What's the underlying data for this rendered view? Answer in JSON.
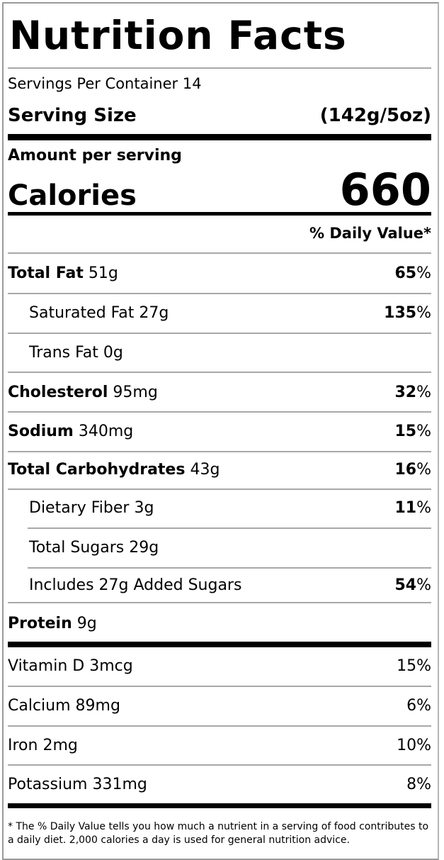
{
  "title": "Nutrition Facts",
  "servings_per_container": "Servings Per Container 14",
  "serving_size": {
    "label": "Serving Size",
    "value": "(142g/5oz)"
  },
  "amount_per_serving": "Amount per serving",
  "calories": {
    "label": "Calories",
    "value": "660"
  },
  "daily_value_header": "% Daily Value*",
  "nutrients": [
    {
      "name": "Total Fat",
      "amount": "51g",
      "dv": "65",
      "bold": true,
      "indent": false
    },
    {
      "name": "Saturated Fat",
      "amount": "27g",
      "dv": "135",
      "bold": false,
      "indent": true
    },
    {
      "name": "Trans Fat",
      "amount": "0g",
      "dv": "",
      "bold": false,
      "indent": true
    },
    {
      "name": "Cholesterol",
      "amount": "95mg",
      "dv": "32",
      "bold": true,
      "indent": false
    },
    {
      "name": "Sodium",
      "amount": "340mg",
      "dv": "15",
      "bold": true,
      "indent": false
    },
    {
      "name": "Total Carbohydrates",
      "amount": "43g",
      "dv": "16",
      "bold": true,
      "indent": false
    },
    {
      "name": "Dietary Fiber",
      "amount": "3g",
      "dv": "11",
      "bold": false,
      "indent": true
    },
    {
      "name": "Total Sugars",
      "amount": "29g",
      "dv": "",
      "bold": false,
      "indent": true
    },
    {
      "name": "Includes 27g Added Sugars",
      "amount": "",
      "dv": "54",
      "bold": false,
      "indent": true
    },
    {
      "name": "Protein",
      "amount": "9g",
      "dv": "",
      "bold": true,
      "indent": false
    }
  ],
  "vitamins": [
    {
      "name": "Vitamin D",
      "amount": "3mcg",
      "dv": "15%"
    },
    {
      "name": "Calcium",
      "amount": "89mg",
      "dv": "6%"
    },
    {
      "name": "Iron",
      "amount": "2mg",
      "dv": "10%"
    },
    {
      "name": "Potassium",
      "amount": "331mg",
      "dv": "8%"
    }
  ],
  "footnote": "* The % Daily Value tells you how much a nutrient in a serving of food contributes to a daily diet. 2,000 calories a day is used for general nutrition advice."
}
